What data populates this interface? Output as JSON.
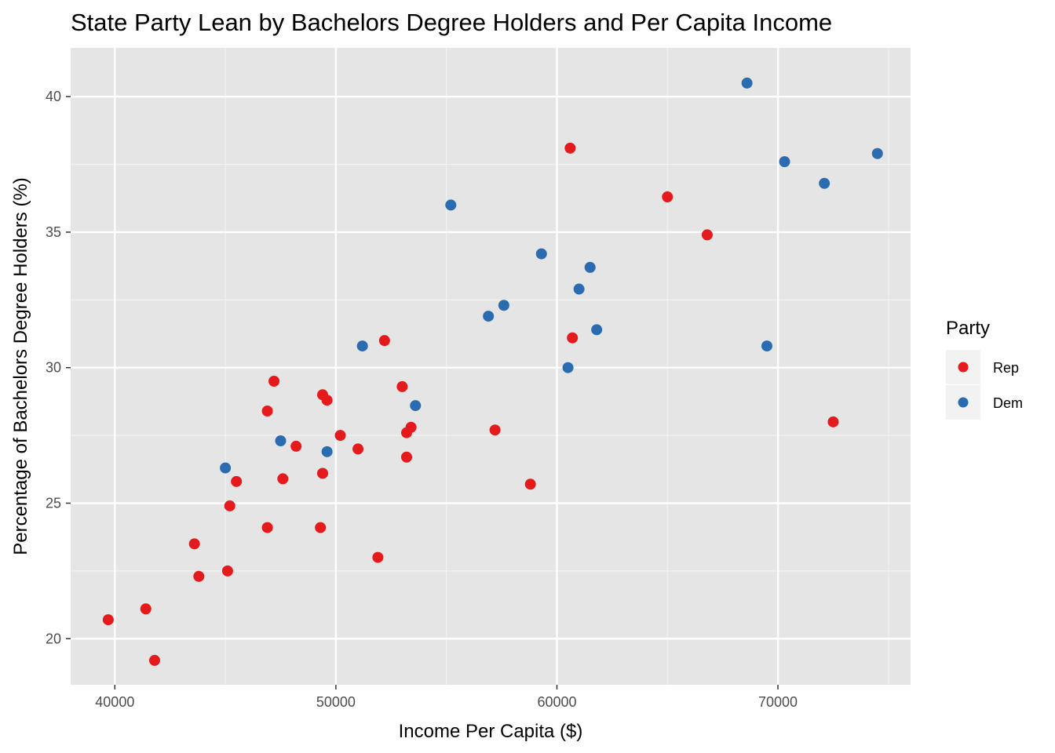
{
  "chart_data": {
    "type": "scatter",
    "title": "State Party Lean by Bachelors Degree Holders and Per Capita Income",
    "xlabel": "Income Per Capita ($)",
    "ylabel": "Percentage of Bachelors Degree Holders (%)",
    "xlim": [
      38000,
      76000
    ],
    "ylim": [
      18.3,
      41.8
    ],
    "x_ticks": [
      40000,
      50000,
      60000,
      70000
    ],
    "x_tick_labels": [
      "40000",
      "50000",
      "60000",
      "70000"
    ],
    "y_ticks": [
      20,
      25,
      30,
      35,
      40
    ],
    "y_tick_labels": [
      "20",
      "25",
      "30",
      "35",
      "40"
    ],
    "grid": true,
    "legend": {
      "title": "Party",
      "position": "right"
    },
    "series": [
      {
        "name": "Rep",
        "color": "#e41a1c",
        "points": [
          [
            39700,
            20.7
          ],
          [
            41400,
            21.1
          ],
          [
            41800,
            19.2
          ],
          [
            43600,
            23.5
          ],
          [
            43800,
            22.3
          ],
          [
            45100,
            22.5
          ],
          [
            45200,
            24.9
          ],
          [
            45500,
            25.8
          ],
          [
            46900,
            24.1
          ],
          [
            46900,
            28.4
          ],
          [
            47200,
            29.5
          ],
          [
            47600,
            25.9
          ],
          [
            48200,
            27.1
          ],
          [
            49300,
            24.1
          ],
          [
            49400,
            26.1
          ],
          [
            49400,
            29.0
          ],
          [
            49600,
            28.8
          ],
          [
            50200,
            27.5
          ],
          [
            51000,
            27.0
          ],
          [
            51900,
            23.0
          ],
          [
            52200,
            31.0
          ],
          [
            53000,
            29.3
          ],
          [
            53200,
            27.6
          ],
          [
            53200,
            26.7
          ],
          [
            53400,
            27.8
          ],
          [
            57200,
            27.7
          ],
          [
            58800,
            25.7
          ],
          [
            60600,
            38.1
          ],
          [
            60700,
            31.1
          ],
          [
            65000,
            36.3
          ],
          [
            66800,
            34.9
          ],
          [
            72500,
            28.0
          ]
        ]
      },
      {
        "name": "Dem",
        "color": "#2b6cb0",
        "points": [
          [
            45000,
            26.3
          ],
          [
            47500,
            27.3
          ],
          [
            49600,
            26.9
          ],
          [
            51200,
            30.8
          ],
          [
            53600,
            28.6
          ],
          [
            55200,
            36.0
          ],
          [
            56900,
            31.9
          ],
          [
            57600,
            32.3
          ],
          [
            59300,
            34.2
          ],
          [
            60500,
            30.0
          ],
          [
            61000,
            32.9
          ],
          [
            61500,
            33.7
          ],
          [
            61800,
            31.4
          ],
          [
            68600,
            40.5
          ],
          [
            69500,
            30.8
          ],
          [
            70300,
            37.6
          ],
          [
            72100,
            36.8
          ],
          [
            74500,
            37.9
          ]
        ]
      }
    ]
  }
}
